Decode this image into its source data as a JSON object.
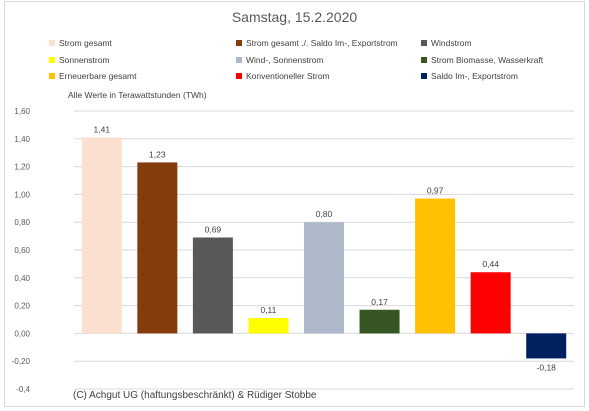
{
  "chart_data": {
    "type": "bar",
    "title": "Samstag, 15.2.2020",
    "unit_note": "Alle Werte in Terawattstunden (TWh)",
    "credit": "(C) Achgut UG (haftungsbeschränkt) & Rüdiger Stobbe",
    "ylim": [
      -0.4,
      1.6
    ],
    "yticks": [
      -0.4,
      -0.2,
      0.0,
      0.2,
      0.4,
      0.6,
      0.8,
      1.0,
      1.2,
      1.4,
      1.6
    ],
    "ytick_labels": [
      "-0,4",
      "-0,20",
      "0,00",
      "0,20",
      "0,40",
      "0,60",
      "0,80",
      "1,00",
      "1,20",
      "1,40",
      "1,60"
    ],
    "grid": true,
    "legend_position": "top",
    "categories": [
      "Strom gesamt",
      "Strom gesamt ./. Saldo Im-, Exportstrom",
      "Windstrom",
      "Sonnenstrom",
      "Wind-, Sonnenstrom",
      "Strom Biomasse, Wasserkraft",
      "Erneuerbare gesamt",
      "Konventioneller Strom",
      "Saldo Im-, Exportstrom"
    ],
    "values": [
      1.41,
      1.23,
      0.69,
      0.11,
      0.8,
      0.17,
      0.97,
      0.44,
      -0.18
    ],
    "value_labels": [
      "1,41",
      "1,23",
      "0,69",
      "0,11",
      "0,80",
      "0,17",
      "0,97",
      "0,44",
      "-0,18"
    ],
    "colors": [
      "#fbe0d0",
      "#843c0c",
      "#595959",
      "#ffff00",
      "#adb9ca",
      "#375623",
      "#ffc000",
      "#ff0000",
      "#002060"
    ]
  }
}
